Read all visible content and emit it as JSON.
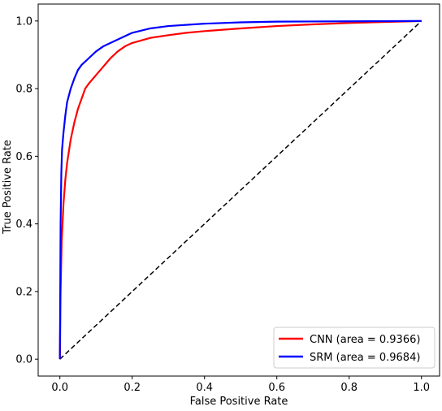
{
  "chart_data": {
    "type": "line",
    "xlabel": "False Positive Rate",
    "ylabel": "True Positive Rate",
    "xlim": [
      -0.06,
      1.05
    ],
    "ylim": [
      -0.05,
      1.05
    ],
    "xticks": [
      "0.0",
      "0.2",
      "0.4",
      "0.6",
      "0.8",
      "1.0"
    ],
    "yticks": [
      "0.0",
      "0.2",
      "0.4",
      "0.6",
      "0.8",
      "1.0"
    ],
    "grid": false,
    "legend_position": "lower-right",
    "series": [
      {
        "name": "CNN (area = 0.9366)",
        "color": "#ff0000",
        "style": "solid",
        "x": [
          0.0,
          0.002,
          0.005,
          0.01,
          0.015,
          0.02,
          0.03,
          0.04,
          0.05,
          0.06,
          0.07,
          0.08,
          0.1,
          0.12,
          0.14,
          0.16,
          0.18,
          0.2,
          0.25,
          0.3,
          0.35,
          0.4,
          0.5,
          0.6,
          0.7,
          0.8,
          0.9,
          1.0
        ],
        "y": [
          0.0,
          0.2,
          0.35,
          0.46,
          0.53,
          0.58,
          0.65,
          0.7,
          0.74,
          0.77,
          0.8,
          0.815,
          0.84,
          0.865,
          0.89,
          0.91,
          0.925,
          0.935,
          0.95,
          0.958,
          0.965,
          0.97,
          0.978,
          0.985,
          0.99,
          0.994,
          0.997,
          1.0
        ]
      },
      {
        "name": "SRM (area = 0.9684)",
        "color": "#0000ff",
        "style": "solid",
        "x": [
          0.0,
          0.002,
          0.004,
          0.006,
          0.01,
          0.015,
          0.02,
          0.03,
          0.04,
          0.05,
          0.06,
          0.08,
          0.1,
          0.12,
          0.15,
          0.18,
          0.2,
          0.25,
          0.3,
          0.4,
          0.5,
          0.6,
          0.8,
          1.0
        ],
        "y": [
          0.0,
          0.4,
          0.55,
          0.62,
          0.67,
          0.72,
          0.76,
          0.8,
          0.83,
          0.855,
          0.87,
          0.89,
          0.91,
          0.925,
          0.94,
          0.955,
          0.965,
          0.978,
          0.985,
          0.992,
          0.996,
          0.998,
          0.999,
          1.0
        ]
      },
      {
        "name": "",
        "color": "#000000",
        "style": "dashed",
        "x": [
          0.0,
          1.0
        ],
        "y": [
          0.0,
          1.0
        ]
      }
    ]
  }
}
